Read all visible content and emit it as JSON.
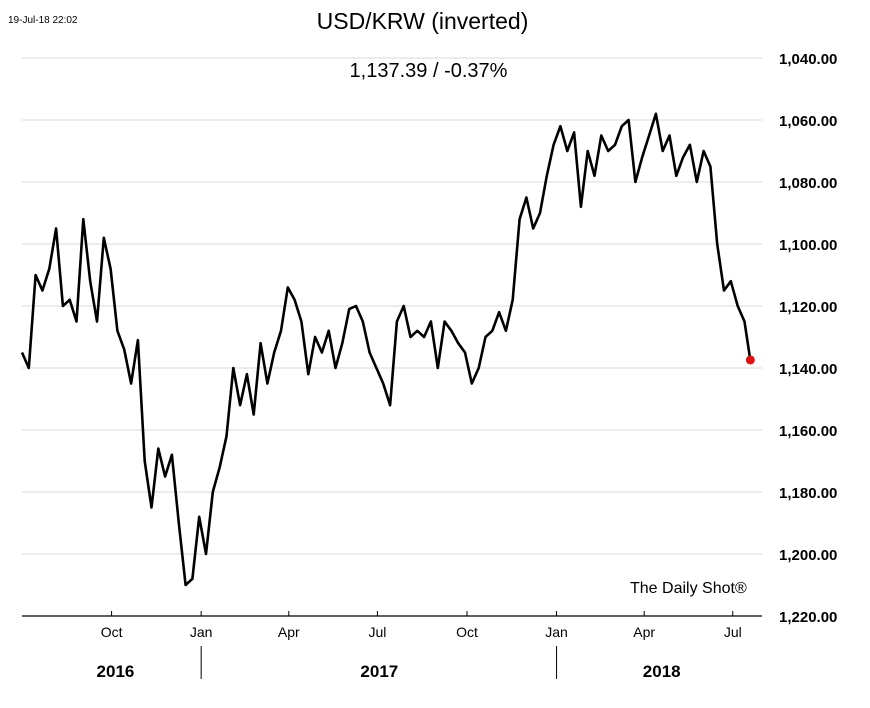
{
  "header": {
    "timestamp": "19-Jul-18 22:02",
    "title": "USD/KRW (inverted)",
    "subtitle": "1,137.39  /  -0.37%"
  },
  "watermark": "The Daily Shot®",
  "colors": {
    "line": "#000000",
    "last_point": "#e01010",
    "grid": "#d9d9d9"
  },
  "chart_data": {
    "type": "line",
    "title": "USD/KRW (inverted)",
    "subtitle": "1,137.39  /  -0.37%",
    "y_inverted": true,
    "ylim": [
      1040,
      1220
    ],
    "yticks": [
      1040,
      1060,
      1080,
      1100,
      1120,
      1140,
      1160,
      1180,
      1200,
      1220
    ],
    "ytick_labels": [
      "1,040.00",
      "1,060.00",
      "1,080.00",
      "1,100.00",
      "1,120.00",
      "1,140.00",
      "1,160.00",
      "1,180.00",
      "1,200.00",
      "1,220.00"
    ],
    "xlim": [
      "2016-07-01",
      "2018-07-31"
    ],
    "xticks": [
      "2016-10-01",
      "2017-01-01",
      "2017-04-01",
      "2017-07-01",
      "2017-10-01",
      "2018-01-01",
      "2018-04-01",
      "2018-07-01"
    ],
    "xtick_labels": [
      "Oct",
      "Jan",
      "Apr",
      "Jul",
      "Oct",
      "Jan",
      "Apr",
      "Jul"
    ],
    "years": [
      {
        "label": "2016",
        "center": "2016-10-05"
      },
      {
        "label": "2017",
        "center": "2017-07-03"
      },
      {
        "label": "2018",
        "center": "2018-04-19"
      }
    ],
    "year_separators": [
      "2017-01-01",
      "2018-01-01"
    ],
    "grid": true,
    "last_value": 1137.39,
    "last_change_pct": -0.37,
    "series": [
      {
        "x": [
          "2016-07-01",
          "2016-07-08",
          "2016-07-15",
          "2016-07-22",
          "2016-07-29",
          "2016-08-05",
          "2016-08-12",
          "2016-08-19",
          "2016-08-26",
          "2016-09-02",
          "2016-09-09",
          "2016-09-16",
          "2016-09-23",
          "2016-09-30",
          "2016-10-07",
          "2016-10-14",
          "2016-10-21",
          "2016-10-28",
          "2016-11-04",
          "2016-11-11",
          "2016-11-18",
          "2016-11-25",
          "2016-12-02",
          "2016-12-09",
          "2016-12-16",
          "2016-12-23",
          "2016-12-30",
          "2017-01-06",
          "2017-01-13",
          "2017-01-20",
          "2017-01-27",
          "2017-02-03",
          "2017-02-10",
          "2017-02-17",
          "2017-02-24",
          "2017-03-03",
          "2017-03-10",
          "2017-03-17",
          "2017-03-24",
          "2017-03-31",
          "2017-04-07",
          "2017-04-14",
          "2017-04-21",
          "2017-04-28",
          "2017-05-05",
          "2017-05-12",
          "2017-05-19",
          "2017-05-26",
          "2017-06-02",
          "2017-06-09",
          "2017-06-16",
          "2017-06-23",
          "2017-06-30",
          "2017-07-07",
          "2017-07-14",
          "2017-07-21",
          "2017-07-28",
          "2017-08-04",
          "2017-08-11",
          "2017-08-18",
          "2017-08-25",
          "2017-09-01",
          "2017-09-08",
          "2017-09-15",
          "2017-09-22",
          "2017-09-29",
          "2017-10-06",
          "2017-10-13",
          "2017-10-20",
          "2017-10-27",
          "2017-11-03",
          "2017-11-10",
          "2017-11-17",
          "2017-11-24",
          "2017-12-01",
          "2017-12-08",
          "2017-12-15",
          "2017-12-22",
          "2017-12-29",
          "2018-01-05",
          "2018-01-12",
          "2018-01-19",
          "2018-01-26",
          "2018-02-02",
          "2018-02-09",
          "2018-02-16",
          "2018-02-23",
          "2018-03-02",
          "2018-03-09",
          "2018-03-16",
          "2018-03-23",
          "2018-03-30",
          "2018-04-06",
          "2018-04-13",
          "2018-04-20",
          "2018-04-27",
          "2018-05-04",
          "2018-05-11",
          "2018-05-18",
          "2018-05-25",
          "2018-06-01",
          "2018-06-08",
          "2018-06-15",
          "2018-06-22",
          "2018-06-29",
          "2018-07-06",
          "2018-07-13",
          "2018-07-19"
        ],
        "values": [
          1135,
          1140,
          1110,
          1115,
          1108,
          1095,
          1120,
          1118,
          1125,
          1092,
          1112,
          1125,
          1098,
          1108,
          1128,
          1134,
          1145,
          1131,
          1170,
          1185,
          1166,
          1175,
          1168,
          1190,
          1210,
          1208,
          1188,
          1200,
          1180,
          1172,
          1162,
          1140,
          1152,
          1142,
          1155,
          1132,
          1145,
          1135,
          1128,
          1114,
          1118,
          1125,
          1142,
          1130,
          1135,
          1128,
          1140,
          1132,
          1121,
          1120,
          1125,
          1135,
          1140,
          1145,
          1152,
          1125,
          1120,
          1130,
          1128,
          1130,
          1125,
          1140,
          1125,
          1128,
          1132,
          1135,
          1145,
          1140,
          1130,
          1128,
          1122,
          1128,
          1118,
          1092,
          1085,
          1095,
          1090,
          1078,
          1068,
          1062,
          1070,
          1064,
          1088,
          1070,
          1078,
          1065,
          1070,
          1068,
          1062,
          1060,
          1080,
          1072,
          1065,
          1058,
          1070,
          1065,
          1078,
          1072,
          1068,
          1080,
          1070,
          1075,
          1100,
          1115,
          1112,
          1120,
          1125,
          1137.39
        ]
      }
    ]
  }
}
